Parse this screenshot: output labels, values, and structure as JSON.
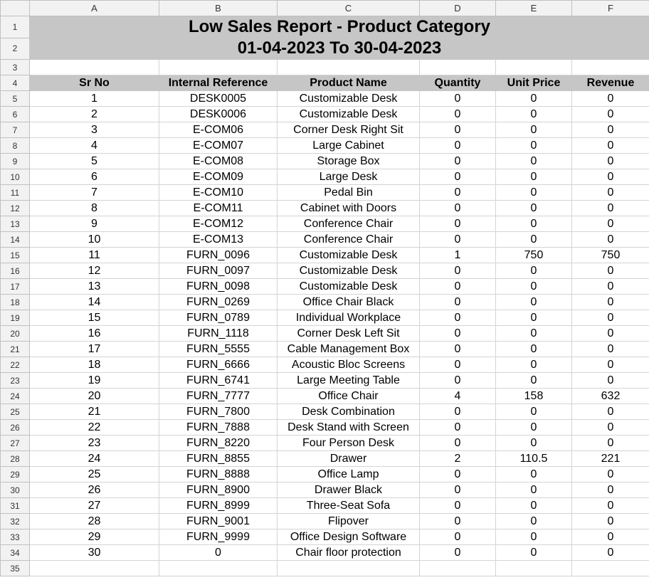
{
  "columns": [
    "A",
    "B",
    "C",
    "D",
    "E",
    "F"
  ],
  "rows_numbers": [
    "1",
    "2",
    "3",
    "4",
    "5",
    "6",
    "7",
    "8",
    "9",
    "10",
    "11",
    "12",
    "13",
    "14",
    "15",
    "16",
    "17",
    "18",
    "19",
    "20",
    "21",
    "22",
    "23",
    "24",
    "25",
    "26",
    "27",
    "28",
    "29",
    "30",
    "31",
    "32",
    "33",
    "34",
    "35"
  ],
  "report": {
    "title": "Low Sales Report - Product Category",
    "period": "01-04-2023 To 30-04-2023"
  },
  "table": {
    "headers": [
      "Sr No",
      "Internal Reference",
      "Product Name",
      "Quantity",
      "Unit Price",
      "Revenue"
    ],
    "rows": [
      [
        "1",
        "DESK0005",
        "Customizable Desk",
        "0",
        "0",
        "0"
      ],
      [
        "2",
        "DESK0006",
        "Customizable Desk",
        "0",
        "0",
        "0"
      ],
      [
        "3",
        "E-COM06",
        "Corner Desk Right Sit",
        "0",
        "0",
        "0"
      ],
      [
        "4",
        "E-COM07",
        "Large Cabinet",
        "0",
        "0",
        "0"
      ],
      [
        "5",
        "E-COM08",
        "Storage Box",
        "0",
        "0",
        "0"
      ],
      [
        "6",
        "E-COM09",
        "Large Desk",
        "0",
        "0",
        "0"
      ],
      [
        "7",
        "E-COM10",
        "Pedal Bin",
        "0",
        "0",
        "0"
      ],
      [
        "8",
        "E-COM11",
        "Cabinet with Doors",
        "0",
        "0",
        "0"
      ],
      [
        "9",
        "E-COM12",
        "Conference Chair",
        "0",
        "0",
        "0"
      ],
      [
        "10",
        "E-COM13",
        "Conference Chair",
        "0",
        "0",
        "0"
      ],
      [
        "11",
        "FURN_0096",
        "Customizable Desk",
        "1",
        "750",
        "750"
      ],
      [
        "12",
        "FURN_0097",
        "Customizable Desk",
        "0",
        "0",
        "0"
      ],
      [
        "13",
        "FURN_0098",
        "Customizable Desk",
        "0",
        "0",
        "0"
      ],
      [
        "14",
        "FURN_0269",
        "Office Chair Black",
        "0",
        "0",
        "0"
      ],
      [
        "15",
        "FURN_0789",
        "Individual Workplace",
        "0",
        "0",
        "0"
      ],
      [
        "16",
        "FURN_1118",
        "Corner Desk Left Sit",
        "0",
        "0",
        "0"
      ],
      [
        "17",
        "FURN_5555",
        "Cable Management Box",
        "0",
        "0",
        "0"
      ],
      [
        "18",
        "FURN_6666",
        "Acoustic Bloc Screens",
        "0",
        "0",
        "0"
      ],
      [
        "19",
        "FURN_6741",
        "Large Meeting Table",
        "0",
        "0",
        "0"
      ],
      [
        "20",
        "FURN_7777",
        "Office Chair",
        "4",
        "158",
        "632"
      ],
      [
        "21",
        "FURN_7800",
        "Desk Combination",
        "0",
        "0",
        "0"
      ],
      [
        "22",
        "FURN_7888",
        "Desk Stand with Screen",
        "0",
        "0",
        "0"
      ],
      [
        "23",
        "FURN_8220",
        "Four Person Desk",
        "0",
        "0",
        "0"
      ],
      [
        "24",
        "FURN_8855",
        "Drawer",
        "2",
        "110.5",
        "221"
      ],
      [
        "25",
        "FURN_8888",
        "Office Lamp",
        "0",
        "0",
        "0"
      ],
      [
        "26",
        "FURN_8900",
        "Drawer Black",
        "0",
        "0",
        "0"
      ],
      [
        "27",
        "FURN_8999",
        "Three-Seat Sofa",
        "0",
        "0",
        "0"
      ],
      [
        "28",
        "FURN_9001",
        "Flipover",
        "0",
        "0",
        "0"
      ],
      [
        "29",
        "FURN_9999",
        "Office Design Software",
        "0",
        "0",
        "0"
      ],
      [
        "30",
        "0",
        "Chair floor protection",
        "0",
        "0",
        "0"
      ]
    ]
  }
}
